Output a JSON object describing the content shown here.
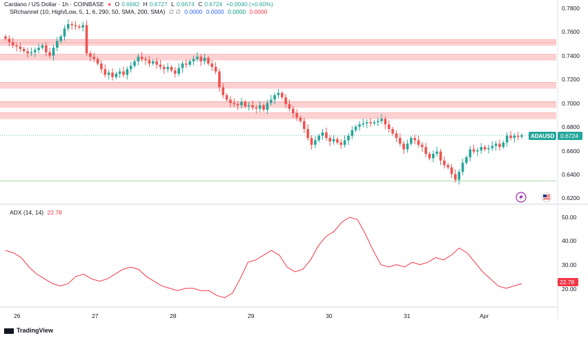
{
  "header": {
    "symbol": "Cardano / US Dollar · 1h · COINBASE",
    "o_label": "O",
    "o_val": "0.6682",
    "h_label": "H",
    "h_val": "0.6727",
    "l_label": "L",
    "l_val": "0.6674",
    "c_label": "C",
    "c_val": "0.6724",
    "change": "+0.0040 (+0.60%)",
    "indicator_label": "SRchannel (10, High/Low, 5, 1, 6, 290, 50, SMA, 200, SMA)",
    "indicator_symbols": "∅  ∅",
    "indicator_values": [
      "0.0000",
      "0.0000",
      "0.0000",
      "0.0000"
    ],
    "adx_label": "ADX (14, 14)",
    "adx_value": "22.78"
  },
  "price_axis": [
    "0.7800",
    "0.7600",
    "0.7400",
    "0.7200",
    "0.7000",
    "0.6800",
    "0.6600",
    "0.6400",
    "0.6200"
  ],
  "adx_axis": [
    "50.00",
    "40.00",
    "30.00",
    "20.00"
  ],
  "time_axis": [
    "26",
    "27",
    "28",
    "29",
    "30",
    "31",
    "Apr"
  ],
  "price_tag": {
    "symbol": "ADAUSD",
    "value": "0.6724"
  },
  "adx_tag": "22.78",
  "branding": "TradingView",
  "colors": {
    "up": "#26a69a",
    "down": "#ef5350",
    "zone": "#fcd1d1",
    "zone_line": "#f28b8b",
    "adx": "#f23645",
    "price_line": "#26a69a"
  },
  "chart_data": {
    "type": "candlestick",
    "title": "Cardano / US Dollar · 1h · COINBASE",
    "ylim": [
      0.615,
      0.785
    ],
    "sr_zones": [
      0.7545,
      0.7415,
      0.7165,
      0.6995,
      0.6895
    ],
    "support_line": 0.632,
    "last_price": 0.6724,
    "days": [
      "26",
      "27",
      "28",
      "29",
      "30",
      "31",
      "Apr"
    ],
    "closes": [
      0.758,
      0.755,
      0.752,
      0.751,
      0.749,
      0.747,
      0.745,
      0.746,
      0.748,
      0.75,
      0.752,
      0.746,
      0.743,
      0.75,
      0.756,
      0.76,
      0.767,
      0.771,
      0.77,
      0.769,
      0.768,
      0.77,
      0.745,
      0.742,
      0.74,
      0.736,
      0.731,
      0.726,
      0.728,
      0.724,
      0.727,
      0.729,
      0.726,
      0.731,
      0.734,
      0.738,
      0.742,
      0.74,
      0.739,
      0.736,
      0.738,
      0.735,
      0.733,
      0.731,
      0.733,
      0.73,
      0.727,
      0.732,
      0.736,
      0.735,
      0.738,
      0.74,
      0.742,
      0.738,
      0.741,
      0.736,
      0.733,
      0.729,
      0.715,
      0.708,
      0.704,
      0.701,
      0.7,
      0.699,
      0.702,
      0.698,
      0.699,
      0.697,
      0.696,
      0.699,
      0.695,
      0.701,
      0.704,
      0.708,
      0.71,
      0.706,
      0.7,
      0.696,
      0.692,
      0.688,
      0.685,
      0.678,
      0.67,
      0.664,
      0.668,
      0.672,
      0.675,
      0.67,
      0.667,
      0.669,
      0.666,
      0.664,
      0.668,
      0.672,
      0.677,
      0.68,
      0.682,
      0.683,
      0.684,
      0.683,
      0.684,
      0.685,
      0.687,
      0.682,
      0.678,
      0.674,
      0.67,
      0.665,
      0.66,
      0.665,
      0.67,
      0.668,
      0.664,
      0.662,
      0.656,
      0.652,
      0.656,
      0.658,
      0.65,
      0.646,
      0.644,
      0.638,
      0.633,
      0.64,
      0.648,
      0.653,
      0.66,
      0.658,
      0.659,
      0.662,
      0.66,
      0.661,
      0.663,
      0.665,
      0.662,
      0.666,
      0.672,
      0.67,
      0.672,
      0.671,
      0.6724
    ]
  }
}
